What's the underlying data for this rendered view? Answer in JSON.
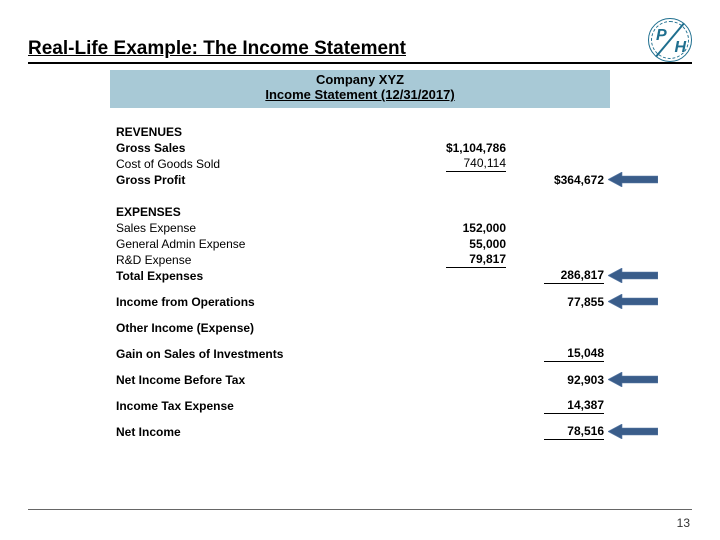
{
  "title": "Real-Life Example: The Income Statement",
  "header": {
    "company": "Company XYZ",
    "subtitle": "Income Statement (12/31/2017)"
  },
  "colors": {
    "header_band": "#a8c9d6",
    "arrow_fill": "#3a5d8a",
    "arrow_stroke": "#5a7aa5",
    "rule": "#000000",
    "logo": "#1f6f8f"
  },
  "logo": {
    "left": "P",
    "right": "H"
  },
  "rows": {
    "revenues": "REVENUES",
    "gross_sales": "Gross Sales",
    "gross_sales_val": "$1,104,786",
    "cogs": "Cost of Goods Sold",
    "cogs_val": "740,114",
    "gross_profit": "Gross Profit",
    "gross_profit_val": "$364,672",
    "expenses": "EXPENSES",
    "sales_exp": "Sales Expense",
    "sales_exp_val": "152,000",
    "ga_exp": "General Admin Expense",
    "ga_exp_val": "55,000",
    "rd_exp": "R&D Expense",
    "rd_exp_val": "79,817",
    "total_exp": "Total Expenses",
    "total_exp_val": "286,817",
    "inc_ops": "Income from Operations",
    "inc_ops_val": "77,855",
    "other_inc": "Other Income (Expense)",
    "gain_inv": "Gain on Sales of Investments",
    "gain_inv_val": "15,048",
    "nibt": "Net Income Before Tax",
    "nibt_val": "92,903",
    "tax": "Income Tax Expense",
    "tax_val": "14,387",
    "net": "Net Income",
    "net_val": "78,516"
  },
  "page_number": "13"
}
